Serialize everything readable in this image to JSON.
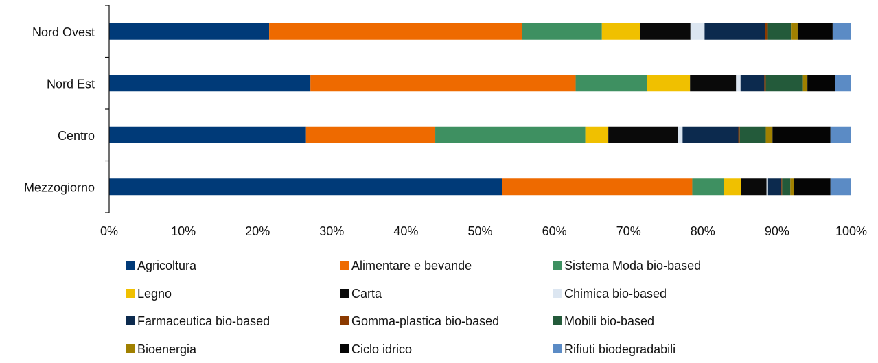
{
  "chart_data": {
    "type": "bar",
    "orientation": "horizontal",
    "stacked": "percent",
    "categories": [
      "Nord Ovest",
      "Nord Est",
      "Centro",
      "Mezzogiorno"
    ],
    "series": [
      {
        "name": "Agricoltura",
        "color": "#003A78",
        "values": [
          21.5,
          27.1,
          26.5,
          52.9
        ]
      },
      {
        "name": "Alimentare e bevande",
        "color": "#EE6A00",
        "values": [
          34.0,
          35.7,
          17.4,
          25.6
        ]
      },
      {
        "name": "Sistema Moda bio-based",
        "color": "#3E9061",
        "values": [
          10.7,
          9.6,
          20.2,
          4.3
        ]
      },
      {
        "name": "Legno",
        "color": "#F0C000",
        "values": [
          5.1,
          5.8,
          3.1,
          2.3
        ]
      },
      {
        "name": "Carta",
        "color": "#0A0A0A",
        "values": [
          6.8,
          6.2,
          9.4,
          3.4
        ]
      },
      {
        "name": "Chimica bio-based",
        "color": "#DCE6F1",
        "values": [
          1.9,
          0.6,
          0.6,
          0.2
        ]
      },
      {
        "name": "Farmaceutica bio-based",
        "color": "#0C2A4E",
        "values": [
          8.1,
          3.2,
          7.5,
          1.8
        ]
      },
      {
        "name": "Gomma-plastica bio-based",
        "color": "#8B3A00",
        "values": [
          0.4,
          0.2,
          0.2,
          0.1
        ]
      },
      {
        "name": "Mobili bio-based",
        "color": "#235A3A",
        "values": [
          3.1,
          5.0,
          3.5,
          1.1
        ]
      },
      {
        "name": "Bioenergia",
        "color": "#A08000",
        "values": [
          0.9,
          0.6,
          0.9,
          0.5
        ]
      },
      {
        "name": "Ciclo idrico",
        "color": "#050505",
        "values": [
          4.7,
          3.7,
          7.8,
          4.9
        ]
      },
      {
        "name": "Rifiuti biodegradabili",
        "color": "#5B8BC5",
        "values": [
          2.5,
          2.2,
          2.8,
          2.8
        ]
      }
    ],
    "x_ticks": [
      "0%",
      "10%",
      "20%",
      "30%",
      "40%",
      "50%",
      "60%",
      "70%",
      "80%",
      "90%",
      "100%"
    ],
    "xlim": [
      0,
      100
    ],
    "title": "",
    "xlabel": "",
    "ylabel": "",
    "grid": false,
    "legend": "bottom"
  }
}
